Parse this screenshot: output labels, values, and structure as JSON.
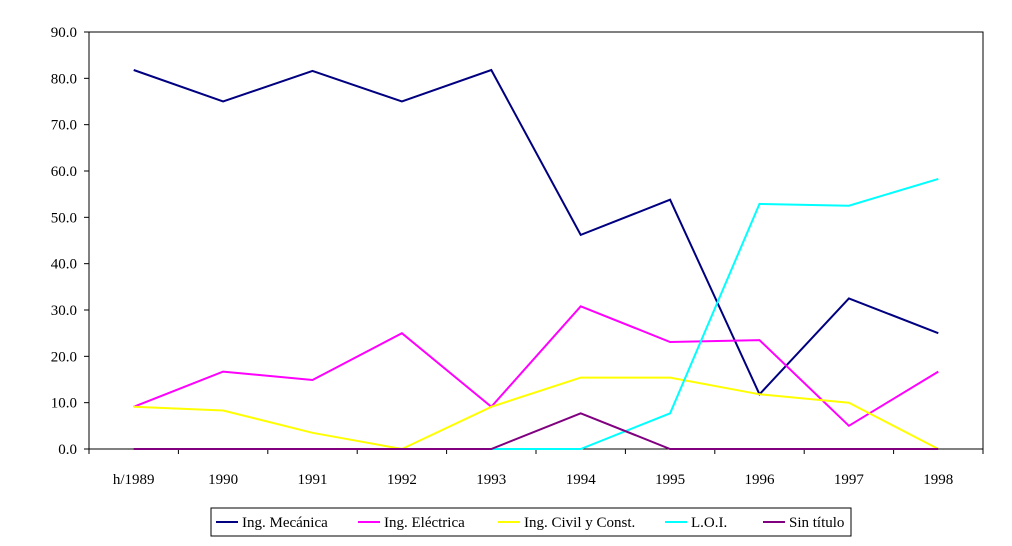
{
  "chart_data": {
    "type": "line",
    "title": "",
    "xlabel": "",
    "ylabel": "",
    "categories": [
      "h/1989",
      "1990",
      "1991",
      "1992",
      "1993",
      "1994",
      "1995",
      "1996",
      "1997",
      "1998"
    ],
    "ylim": [
      0,
      90
    ],
    "yticks": [
      "0.0",
      "10.0",
      "20.0",
      "30.0",
      "40.0",
      "50.0",
      "60.0",
      "70.0",
      "80.0",
      "90.0"
    ],
    "grid": false,
    "legend_position": "bottom",
    "series": [
      {
        "name": "Ing. Mecánica",
        "color": "#000080",
        "values": [
          81.8,
          75.0,
          81.6,
          75.0,
          81.8,
          46.2,
          53.8,
          11.8,
          32.5,
          25.0
        ]
      },
      {
        "name": "Ing. Eléctrica",
        "color": "#ff00ff",
        "values": [
          9.1,
          16.7,
          14.9,
          25.0,
          9.1,
          30.8,
          23.1,
          23.5,
          5.0,
          16.7
        ]
      },
      {
        "name": "Ing. Civil y Const.",
        "color": "#ffff00",
        "values": [
          9.1,
          8.3,
          3.5,
          0.0,
          9.1,
          15.4,
          15.4,
          11.8,
          10.0,
          0.0
        ]
      },
      {
        "name": "L.O.I.",
        "color": "#00ffff",
        "values": [
          null,
          null,
          null,
          null,
          0.0,
          0.0,
          7.7,
          52.9,
          52.5,
          58.3
        ]
      },
      {
        "name": "Sin título",
        "color": "#800080",
        "values": [
          0.0,
          0.0,
          0.0,
          0.0,
          0.0,
          7.7,
          0.0,
          0.0,
          0.0,
          0.0
        ]
      }
    ]
  }
}
